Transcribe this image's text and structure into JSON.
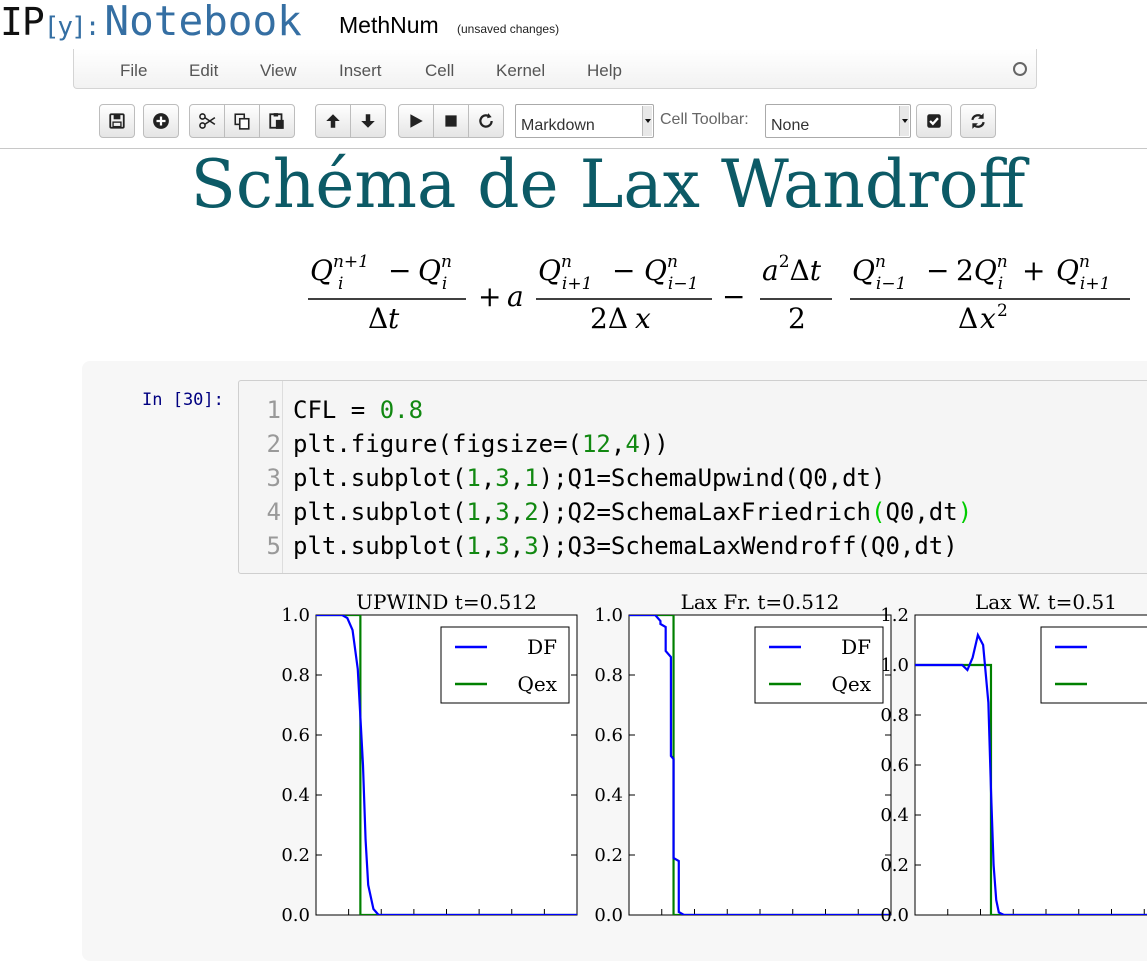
{
  "header": {
    "logo": {
      "ip": "IP",
      "py": "[y]:",
      "notebook": "Notebook"
    },
    "notebook_name": "MethNum",
    "save_status": "(unsaved changes)"
  },
  "menubar": {
    "items": [
      "File",
      "Edit",
      "View",
      "Insert",
      "Cell",
      "Kernel",
      "Help"
    ],
    "kernel_indicator": "circle-idle-icon"
  },
  "toolbar": {
    "buttons": [
      "save-icon",
      "plus-circle-icon",
      "cut-icon",
      "copy-icon",
      "paste-icon",
      "arrow-up-icon",
      "arrow-down-icon",
      "play-icon",
      "stop-icon",
      "refresh-icon",
      "checkbox-icon",
      "sync-icon"
    ],
    "cell_type": "Markdown",
    "cell_toolbar_label": "Cell Toolbar:",
    "cell_toolbar_value": "None"
  },
  "markdown_cell": {
    "heading": "Schéma de Lax Wandroff"
  },
  "code_cell": {
    "prompt": "In [30]:",
    "lines": [
      "CFL = 0.8",
      "plt.figure(figsize=(12,4))",
      "plt.subplot(1,3,1);Q1=SchemaUpwind(Q0,dt)",
      "plt.subplot(1,3,2);Q2=SchemaLaxFriedrich(Q0,dt)",
      "plt.subplot(1,3,3);Q3=SchemaLaxWendroff(Q0,dt)"
    ],
    "line_numbers": [
      "1",
      "2",
      "3",
      "4",
      "5"
    ]
  },
  "chart_data": [
    {
      "type": "line",
      "title": "UPWIND t=0.512",
      "ylim": [
        0.0,
        1.0
      ],
      "yticks": [
        "0.0",
        "0.2",
        "0.4",
        "0.6",
        "0.8",
        "1.0"
      ],
      "legend": "top-right",
      "series": [
        {
          "name": "DF",
          "color": "#0000ff",
          "x": [
            0.0,
            0.1,
            0.12,
            0.14,
            0.16,
            0.18,
            0.19,
            0.2,
            0.22,
            0.24,
            1.0
          ],
          "values": [
            1.0,
            1.0,
            0.99,
            0.95,
            0.82,
            0.5,
            0.25,
            0.1,
            0.02,
            0.0,
            0.0
          ]
        },
        {
          "name": "Qex",
          "color": "#008000",
          "x": [
            0.0,
            0.17,
            0.17,
            1.0
          ],
          "values": [
            1.0,
            1.0,
            0.0,
            0.0
          ]
        }
      ]
    },
    {
      "type": "line",
      "title": "Lax Fr. t=0.512",
      "ylim": [
        0.0,
        1.0
      ],
      "yticks": [
        "0.0",
        "0.2",
        "0.4",
        "0.6",
        "0.8",
        "1.0"
      ],
      "legend": "top-right",
      "series": [
        {
          "name": "DF",
          "color": "#0000ff",
          "x": [
            0.0,
            0.1,
            0.12,
            0.12,
            0.14,
            0.14,
            0.16,
            0.16,
            0.17,
            0.17,
            0.19,
            0.19,
            0.21,
            0.21,
            1.0
          ],
          "values": [
            1.0,
            1.0,
            0.98,
            0.97,
            0.96,
            0.88,
            0.86,
            0.53,
            0.52,
            0.19,
            0.18,
            0.01,
            0.0,
            0.0,
            0.0
          ]
        },
        {
          "name": "Qex",
          "color": "#008000",
          "x": [
            0.0,
            0.17,
            0.17,
            1.0
          ],
          "values": [
            1.0,
            1.0,
            0.0,
            0.0
          ]
        }
      ]
    },
    {
      "type": "line",
      "title": "Lax W. t=0.51",
      "ylim": [
        0.0,
        1.2
      ],
      "yticks": [
        "0.0",
        "0.2",
        "0.4",
        "0.6",
        "0.8",
        "1.0",
        "1.2"
      ],
      "legend": "top-right",
      "series": [
        {
          "name": "",
          "color": "#0000ff",
          "x": [
            0.0,
            0.18,
            0.2,
            0.22,
            0.24,
            0.26,
            0.28,
            0.29,
            0.3,
            0.31,
            0.32,
            0.34,
            1.0
          ],
          "values": [
            1.0,
            1.0,
            0.98,
            1.03,
            1.12,
            1.08,
            0.85,
            0.5,
            0.2,
            0.06,
            0.01,
            0.0,
            0.0
          ]
        },
        {
          "name": "",
          "color": "#008000",
          "x": [
            0.0,
            0.29,
            0.29,
            1.0
          ],
          "values": [
            1.0,
            1.0,
            0.0,
            0.0
          ]
        }
      ]
    }
  ]
}
